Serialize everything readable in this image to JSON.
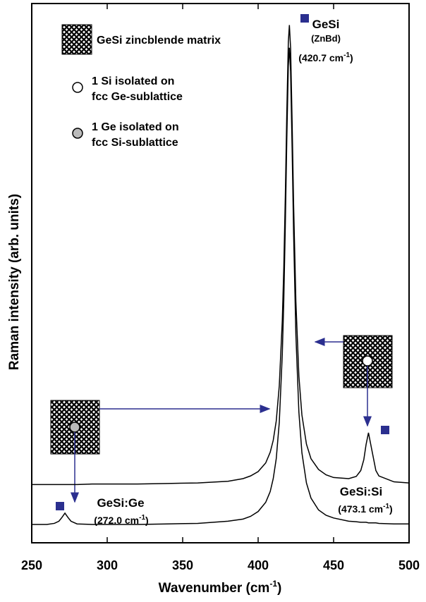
{
  "chart_data": {
    "type": "line",
    "xlabel": {
      "text": "Wavenumber (cm",
      "sup": "-1",
      "tail": ")"
    },
    "ylabel": "Raman intensity (arb. units)",
    "xlim": [
      250,
      500
    ],
    "xticks": [
      250,
      300,
      350,
      400,
      450,
      500
    ],
    "ylim": [
      0,
      100
    ],
    "x": [
      250,
      260,
      265,
      268,
      270,
      272,
      274,
      276,
      280,
      290,
      300,
      320,
      340,
      360,
      380,
      390,
      395,
      400,
      405,
      408,
      410,
      412,
      414,
      416,
      417,
      418,
      419,
      420,
      420.7,
      421.5,
      422.5,
      423.5,
      425,
      427,
      429,
      432,
      435,
      440,
      445,
      450,
      460,
      465,
      468,
      470,
      471.5,
      473.1,
      474.7,
      478,
      480,
      490,
      500
    ],
    "series": [
      {
        "color": "#000000",
        "values": [
          3.4,
          3.4,
          3.6,
          4.0,
          4.7,
          5.5,
          4.7,
          4.0,
          3.5,
          3.4,
          3.4,
          3.4,
          3.5,
          3.6,
          4.0,
          4.4,
          4.9,
          5.8,
          7.5,
          9.5,
          11.9,
          15.6,
          22.3,
          34.9,
          45.0,
          58.8,
          74.9,
          88.4,
          91.8,
          87.4,
          73.3,
          57.3,
          38.6,
          24.2,
          16.7,
          11.1,
          8.3,
          6.1,
          5.1,
          4.6,
          4.0,
          3.9,
          3.8,
          3.8,
          3.8,
          3.7,
          3.7,
          3.7,
          3.6,
          3.5,
          3.5
        ]
      },
      {
        "color": "#000000",
        "values": [
          10.8,
          10.8,
          10.8,
          10.8,
          10.8,
          10.8,
          10.8,
          10.8,
          10.8,
          10.9,
          10.9,
          10.9,
          11.0,
          11.1,
          11.4,
          11.9,
          12.4,
          13.2,
          14.8,
          16.8,
          19.0,
          22.6,
          29.1,
          41.2,
          51.0,
          64.2,
          79.8,
          92.8,
          96.0,
          91.8,
          78.2,
          62.8,
          44.8,
          30.9,
          23.7,
          18.3,
          15.6,
          13.6,
          12.6,
          12.1,
          11.9,
          12.3,
          13.4,
          15.4,
          18.2,
          20.4,
          18.1,
          13.4,
          12.4,
          11.3,
          11.1
        ]
      }
    ],
    "legend": [
      {
        "lines": [
          "GeSi zincblende matrix"
        ]
      },
      {
        "lines": [
          "1 Si isolated on",
          "fcc Ge-sublattice"
        ]
      },
      {
        "lines": [
          "1 Ge isolated on",
          "fcc Si-sublattice"
        ]
      }
    ],
    "annotations": [
      {
        "text": "GeSi"
      },
      {
        "text": "(ZnBd)"
      },
      {
        "text": "(420.7 cm",
        "sup": "-1",
        "tail": ")"
      },
      {
        "text": "GeSi:Si"
      },
      {
        "text": "(473.1 cm",
        "sup": "-1",
        "tail": ")"
      },
      {
        "text": "GeSi:Ge"
      },
      {
        "text": "(272.0 cm",
        "sup": "-1",
        "tail": ")"
      }
    ]
  }
}
